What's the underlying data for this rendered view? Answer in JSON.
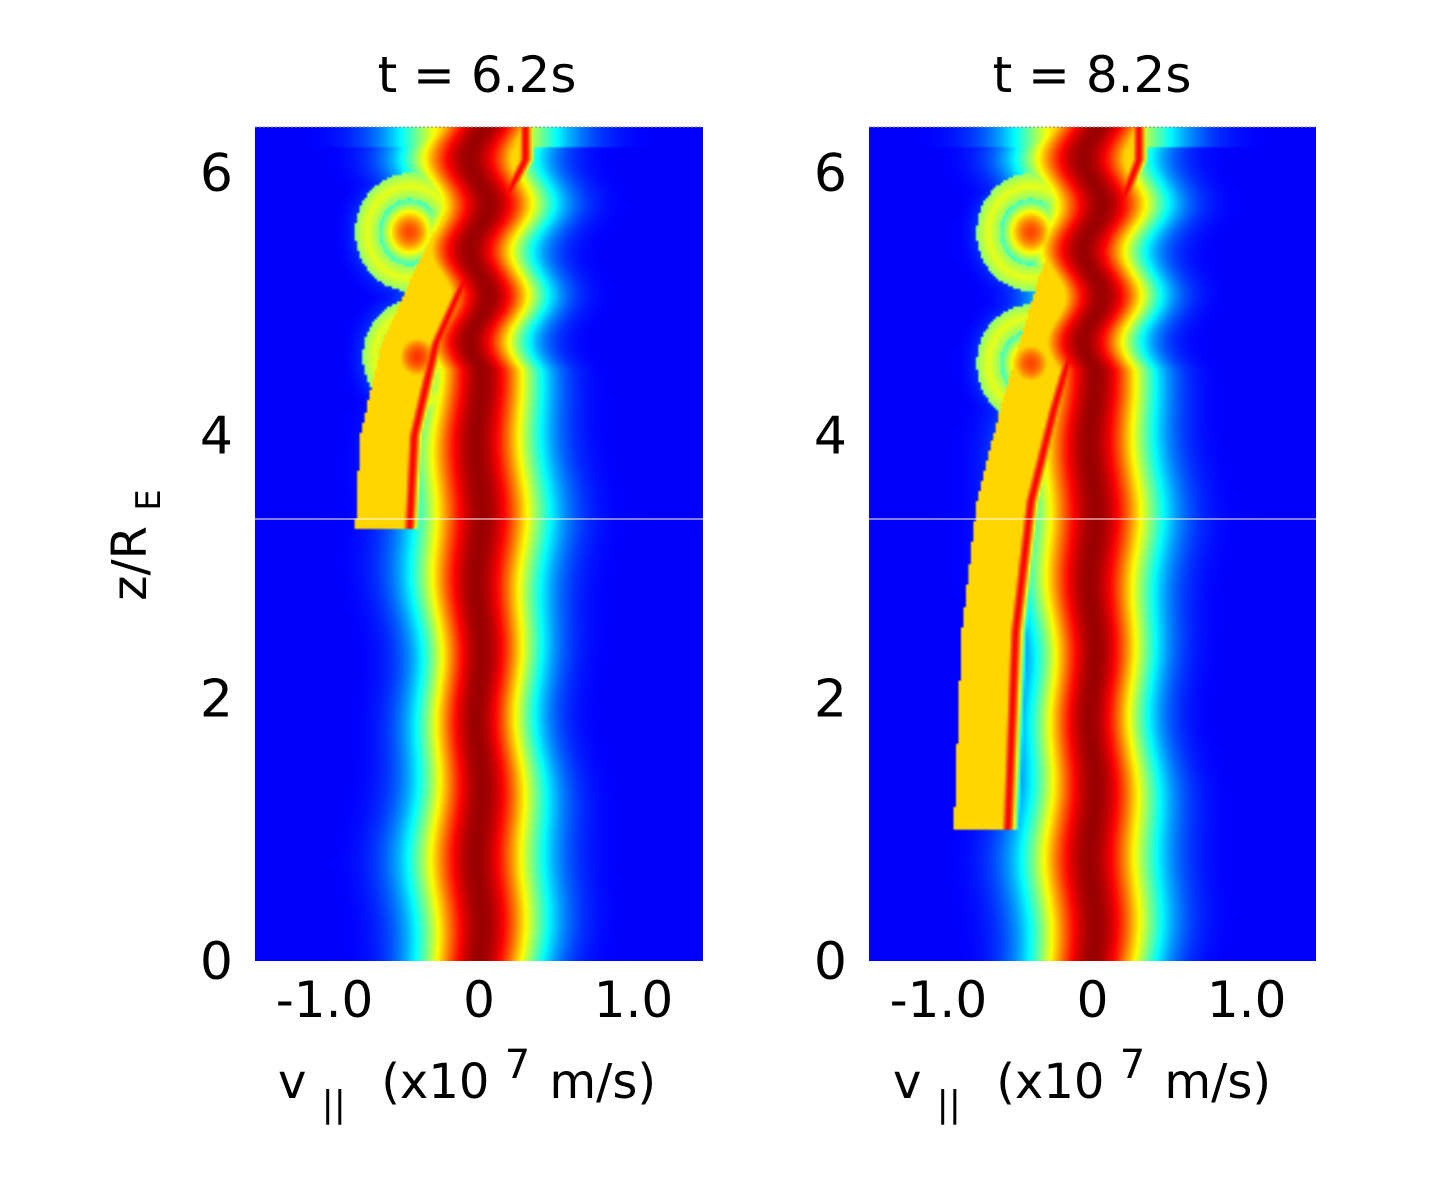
{
  "chart_data": [
    {
      "type": "heatmap",
      "title": "t = 6.2s",
      "xlabel": "v|| (x10^7 m/s)",
      "xlabel_parts": {
        "main": "v",
        "sub": "||",
        "rest": "(x10",
        "sup": "7",
        "unit": "m/s)"
      },
      "ylabel_parts": {
        "main": "z/R",
        "sub": "E"
      },
      "xlim": [
        -1.45,
        1.45
      ],
      "ylim": [
        0,
        6.35
      ],
      "xticks": [
        {
          "value": -1.0,
          "label": "-1.0"
        },
        {
          "value": 0,
          "label": "0"
        },
        {
          "value": 1.0,
          "label": "1.0"
        }
      ],
      "yticks": [
        {
          "value": 0,
          "label": "0"
        },
        {
          "value": 2,
          "label": "2"
        },
        {
          "value": 4,
          "label": "4"
        },
        {
          "value": 6,
          "label": "6"
        }
      ],
      "colormap": "jet",
      "features": {
        "core_center_v": 0.0,
        "beam_track_v_at_z": [
          [
            3.3,
            -0.45
          ],
          [
            4.0,
            -0.42
          ],
          [
            4.7,
            -0.28
          ],
          [
            5.3,
            -0.05
          ],
          [
            6.1,
            0.3
          ]
        ],
        "hot_spots": [
          {
            "v": -0.45,
            "z": 5.55,
            "level": 0.78
          },
          {
            "v": -0.4,
            "z": 4.6,
            "level": 0.8
          }
        ]
      }
    },
    {
      "type": "heatmap",
      "title": "t = 8.2s",
      "xlabel": "v|| (x10^7 m/s)",
      "xlabel_parts": {
        "main": "v",
        "sub": "||",
        "rest": "(x10",
        "sup": "7",
        "unit": "m/s)"
      },
      "xlim": [
        -1.45,
        1.45
      ],
      "ylim": [
        0,
        6.35
      ],
      "xticks": [
        {
          "value": -1.0,
          "label": "-1.0"
        },
        {
          "value": 0,
          "label": "0"
        },
        {
          "value": 1.0,
          "label": "1.0"
        }
      ],
      "yticks": [
        {
          "value": 0,
          "label": "0"
        },
        {
          "value": 2,
          "label": "2"
        },
        {
          "value": 4,
          "label": "4"
        },
        {
          "value": 6,
          "label": "6"
        }
      ],
      "colormap": "jet",
      "features": {
        "core_center_v": 0.0,
        "beam_track_v_at_z": [
          [
            1.0,
            -0.55
          ],
          [
            2.5,
            -0.5
          ],
          [
            3.5,
            -0.4
          ],
          [
            4.2,
            -0.25
          ],
          [
            5.2,
            0.0
          ],
          [
            6.1,
            0.3
          ]
        ],
        "hot_spots": [
          {
            "v": -0.4,
            "z": 5.55,
            "level": 0.78
          },
          {
            "v": -0.4,
            "z": 4.55,
            "level": 0.78
          }
        ]
      }
    }
  ]
}
